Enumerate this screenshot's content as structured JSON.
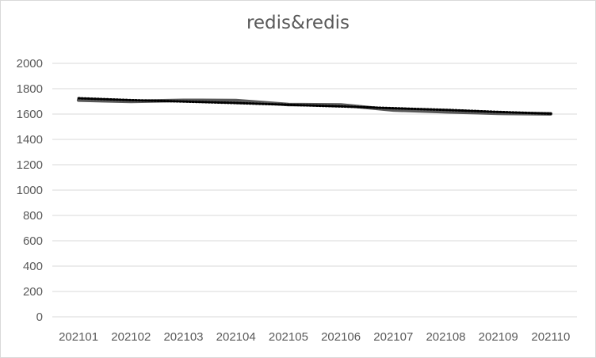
{
  "chart_data": {
    "type": "line",
    "title": "redis&redis",
    "categories": [
      "202101",
      "202102",
      "202103",
      "202104",
      "202105",
      "202106",
      "202107",
      "202108",
      "202109",
      "202110"
    ],
    "series": [
      {
        "values": [
          1710,
          1700,
          1708,
          1706,
          1675,
          1672,
          1632,
          1618,
          1606,
          1602
        ],
        "color": "#595959",
        "style": "solid"
      },
      {
        "values": [
          1725,
          1710,
          1699,
          1687,
          1673,
          1660,
          1646,
          1633,
          1617,
          1603
        ],
        "color": "#000000",
        "style": "dotted"
      }
    ],
    "yticks": [
      "0",
      "200",
      "400",
      "600",
      "800",
      "1000",
      "1200",
      "1400",
      "1600",
      "1800",
      "2000"
    ],
    "ylim": [
      0,
      2000
    ],
    "grid": true,
    "legend": "none"
  }
}
